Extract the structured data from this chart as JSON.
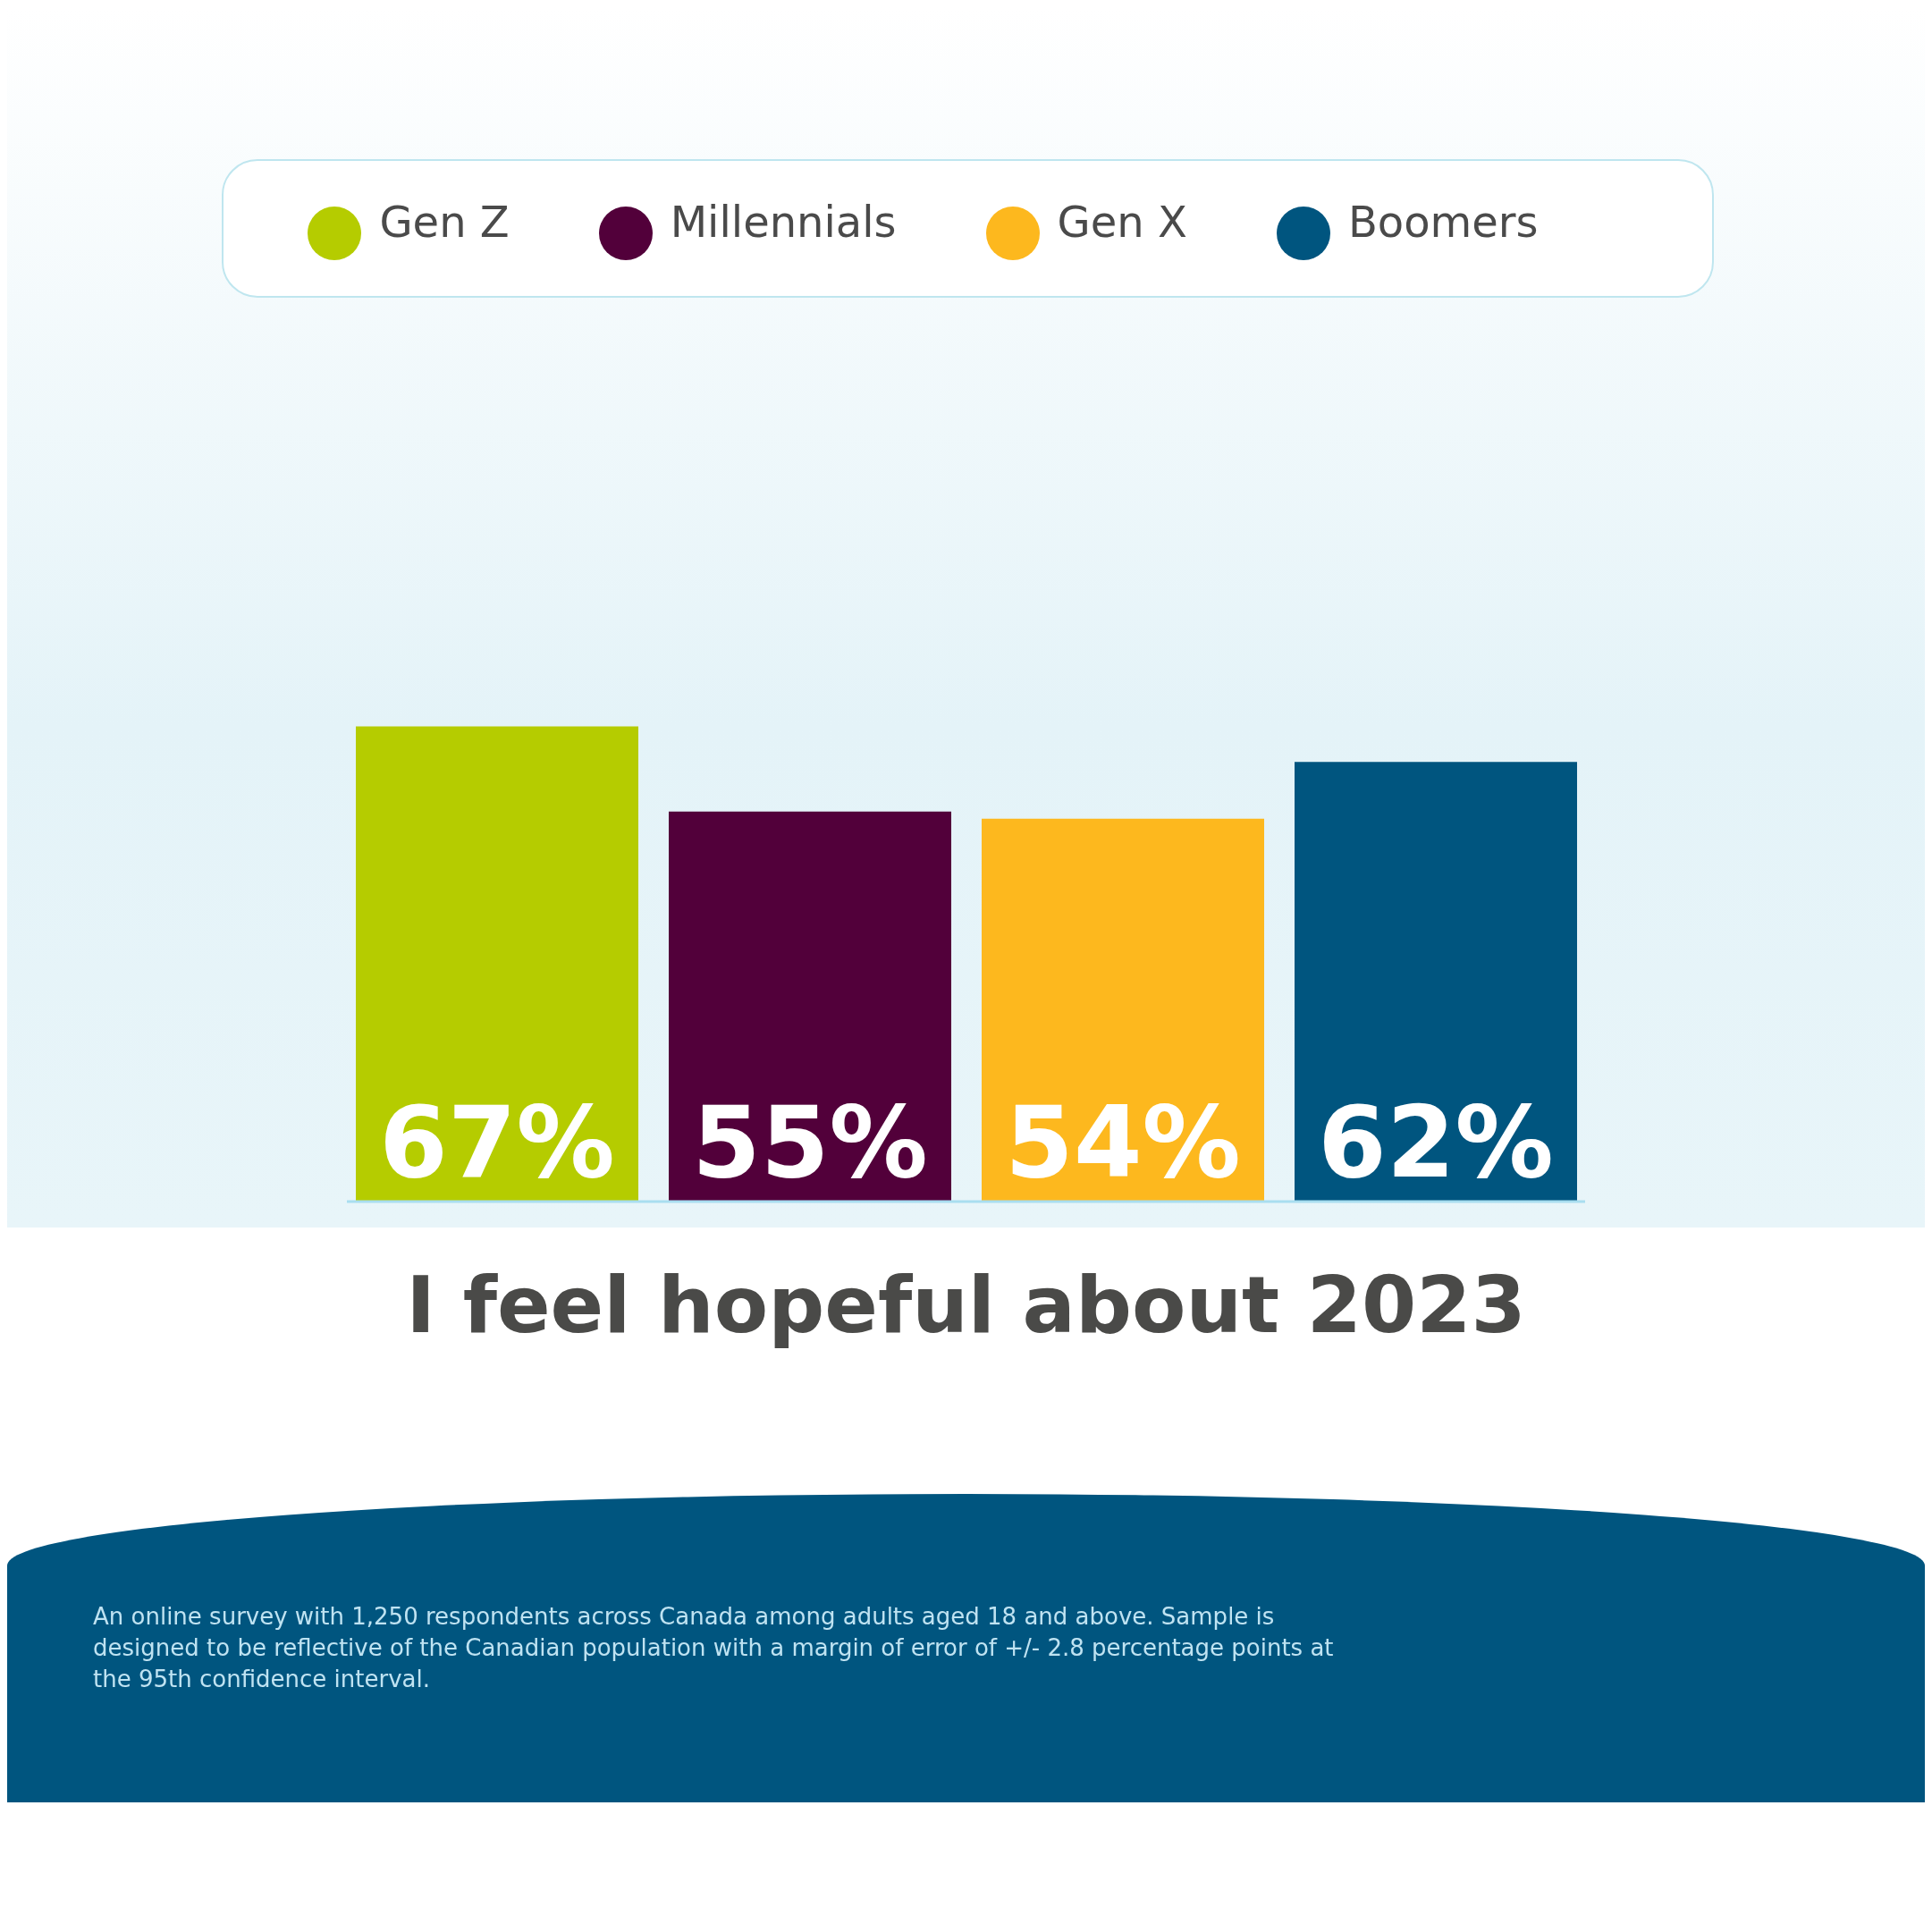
{
  "chart_data": {
    "type": "bar",
    "title": "I feel hopeful about 2023",
    "categories": [
      null
    ],
    "legend": "top",
    "series": [
      {
        "name": "Gen Z",
        "color": "#b5cc00",
        "values": [
          67
        ],
        "value_labels": [
          "67%"
        ]
      },
      {
        "name": "Millennials",
        "color": "#52003a",
        "values": [
          55
        ],
        "value_labels": [
          "55%"
        ]
      },
      {
        "name": "Gen X",
        "color": "#fdb81e",
        "values": [
          54
        ],
        "value_labels": [
          "54%"
        ]
      },
      {
        "name": "Boomers",
        "color": "#00557f",
        "values": [
          62
        ],
        "value_labels": [
          "62%"
        ]
      }
    ],
    "annotations": [
      "An online survey with 1,250 respondents across Canada among adults aged 18 and above. Sample is designed to be reflective of the Canadian population with a margin of error of +/- 2.8 percentage points at the 95th confidence interval."
    ]
  }
}
